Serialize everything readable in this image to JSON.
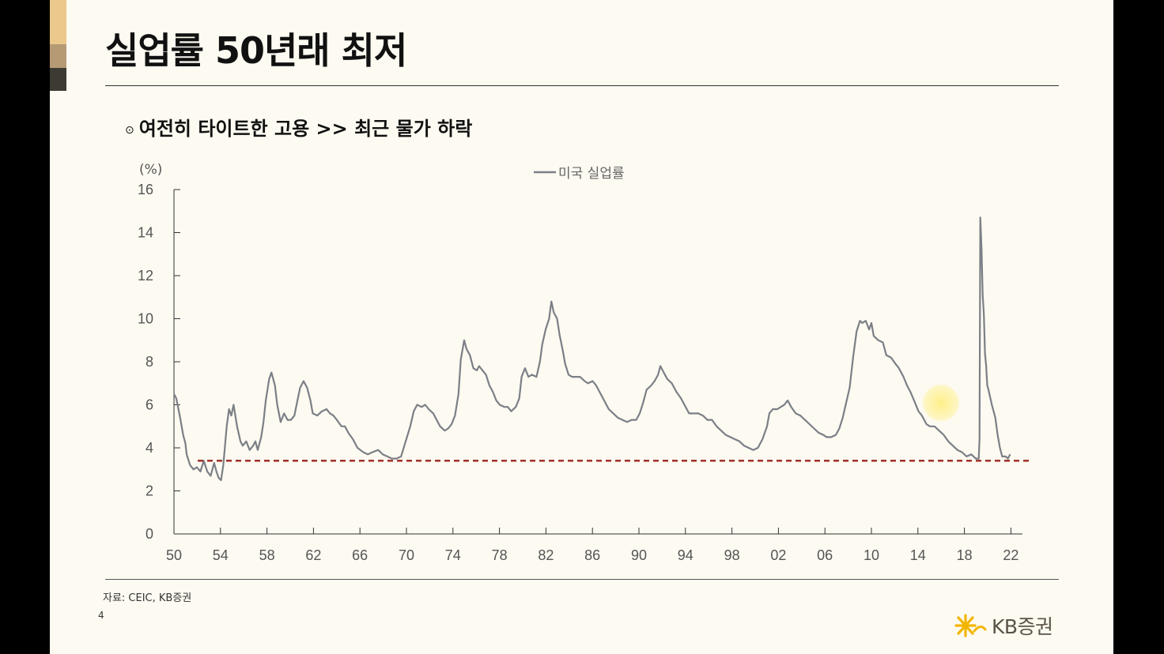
{
  "slide": {
    "title": "실업률 50년래 최저",
    "subtitle_bullet": "⊙",
    "subtitle": "여전히 타이트한 고용 >> 최근 물가 하락",
    "source": "자료: CEIC, KB증권",
    "page_number": "4",
    "brand": "KB증권",
    "accent_colors": [
      "#ebc88c",
      "#b59a74",
      "#3d3a33"
    ]
  },
  "chart_data": {
    "type": "line",
    "title": "",
    "xlabel": "",
    "ylabel": "(%)",
    "ylim": [
      0,
      16
    ],
    "yticks": [
      0,
      2,
      4,
      6,
      8,
      10,
      12,
      14,
      16
    ],
    "xlim": [
      1950,
      2023
    ],
    "xtick_labels": [
      "50",
      "54",
      "58",
      "62",
      "66",
      "70",
      "74",
      "78",
      "82",
      "86",
      "90",
      "94",
      "98",
      "02",
      "06",
      "10",
      "14",
      "18",
      "22"
    ],
    "grid": false,
    "legend_position": "top-center",
    "series": [
      {
        "name": "미국 실업률",
        "color": "#7b7f86",
        "points": [
          [
            1950.0,
            6.5
          ],
          [
            1950.2,
            6.3
          ],
          [
            1950.5,
            5.5
          ],
          [
            1950.8,
            4.6
          ],
          [
            1951.0,
            4.2
          ],
          [
            1951.1,
            3.7
          ],
          [
            1951.4,
            3.2
          ],
          [
            1951.7,
            3.0
          ],
          [
            1952.0,
            3.1
          ],
          [
            1952.3,
            2.9
          ],
          [
            1952.6,
            3.4
          ],
          [
            1952.9,
            2.9
          ],
          [
            1953.2,
            2.7
          ],
          [
            1953.5,
            3.3
          ],
          [
            1953.7,
            2.9
          ],
          [
            1953.9,
            2.6
          ],
          [
            1954.1,
            2.5
          ],
          [
            1954.3,
            3.2
          ],
          [
            1954.6,
            5.0
          ],
          [
            1954.8,
            5.8
          ],
          [
            1955.0,
            5.5
          ],
          [
            1955.2,
            6.0
          ],
          [
            1955.5,
            5.0
          ],
          [
            1955.8,
            4.3
          ],
          [
            1956.0,
            4.1
          ],
          [
            1956.3,
            4.3
          ],
          [
            1956.6,
            3.9
          ],
          [
            1956.9,
            4.1
          ],
          [
            1957.1,
            4.3
          ],
          [
            1957.3,
            3.9
          ],
          [
            1957.6,
            4.5
          ],
          [
            1957.8,
            5.2
          ],
          [
            1958.0,
            6.2
          ],
          [
            1958.3,
            7.2
          ],
          [
            1958.5,
            7.5
          ],
          [
            1958.8,
            6.9
          ],
          [
            1959.0,
            6.0
          ],
          [
            1959.3,
            5.2
          ],
          [
            1959.6,
            5.6
          ],
          [
            1959.9,
            5.3
          ],
          [
            1960.2,
            5.3
          ],
          [
            1960.5,
            5.5
          ],
          [
            1960.8,
            6.3
          ],
          [
            1961.0,
            6.8
          ],
          [
            1961.3,
            7.1
          ],
          [
            1961.6,
            6.8
          ],
          [
            1961.9,
            6.2
          ],
          [
            1962.1,
            5.6
          ],
          [
            1962.5,
            5.5
          ],
          [
            1962.9,
            5.7
          ],
          [
            1963.3,
            5.8
          ],
          [
            1963.6,
            5.6
          ],
          [
            1963.9,
            5.5
          ],
          [
            1964.2,
            5.3
          ],
          [
            1964.6,
            5.0
          ],
          [
            1964.9,
            5.0
          ],
          [
            1965.2,
            4.7
          ],
          [
            1965.6,
            4.4
          ],
          [
            1966.0,
            4.0
          ],
          [
            1966.5,
            3.8
          ],
          [
            1966.9,
            3.7
          ],
          [
            1967.3,
            3.8
          ],
          [
            1967.8,
            3.9
          ],
          [
            1968.2,
            3.7
          ],
          [
            1968.6,
            3.6
          ],
          [
            1969.0,
            3.5
          ],
          [
            1969.4,
            3.5
          ],
          [
            1969.8,
            3.6
          ],
          [
            1970.2,
            4.3
          ],
          [
            1970.6,
            5.0
          ],
          [
            1970.9,
            5.7
          ],
          [
            1971.2,
            6.0
          ],
          [
            1971.6,
            5.9
          ],
          [
            1971.9,
            6.0
          ],
          [
            1972.2,
            5.8
          ],
          [
            1972.6,
            5.6
          ],
          [
            1972.9,
            5.3
          ],
          [
            1973.2,
            5.0
          ],
          [
            1973.6,
            4.8
          ],
          [
            1973.9,
            4.9
          ],
          [
            1974.2,
            5.1
          ],
          [
            1974.5,
            5.5
          ],
          [
            1974.8,
            6.5
          ],
          [
            1975.0,
            8.1
          ],
          [
            1975.3,
            9.0
          ],
          [
            1975.5,
            8.6
          ],
          [
            1975.8,
            8.3
          ],
          [
            1976.1,
            7.7
          ],
          [
            1976.4,
            7.6
          ],
          [
            1976.6,
            7.8
          ],
          [
            1976.9,
            7.6
          ],
          [
            1977.2,
            7.4
          ],
          [
            1977.5,
            6.9
          ],
          [
            1977.8,
            6.6
          ],
          [
            1978.1,
            6.2
          ],
          [
            1978.4,
            6.0
          ],
          [
            1978.8,
            5.9
          ],
          [
            1979.1,
            5.9
          ],
          [
            1979.4,
            5.7
          ],
          [
            1979.8,
            5.9
          ],
          [
            1980.1,
            6.3
          ],
          [
            1980.3,
            7.3
          ],
          [
            1980.6,
            7.7
          ],
          [
            1980.9,
            7.3
          ],
          [
            1981.2,
            7.4
          ],
          [
            1981.6,
            7.3
          ],
          [
            1981.9,
            8.0
          ],
          [
            1982.1,
            8.8
          ],
          [
            1982.4,
            9.5
          ],
          [
            1982.7,
            10.0
          ],
          [
            1982.9,
            10.8
          ],
          [
            1983.1,
            10.3
          ],
          [
            1983.4,
            10.0
          ],
          [
            1983.6,
            9.3
          ],
          [
            1983.9,
            8.5
          ],
          [
            1984.1,
            7.9
          ],
          [
            1984.4,
            7.4
          ],
          [
            1984.7,
            7.3
          ],
          [
            1985.0,
            7.3
          ],
          [
            1985.4,
            7.3
          ],
          [
            1985.8,
            7.1
          ],
          [
            1986.1,
            7.0
          ],
          [
            1986.5,
            7.1
          ],
          [
            1986.8,
            6.9
          ],
          [
            1987.1,
            6.6
          ],
          [
            1987.5,
            6.2
          ],
          [
            1987.9,
            5.8
          ],
          [
            1988.3,
            5.6
          ],
          [
            1988.7,
            5.4
          ],
          [
            1989.1,
            5.3
          ],
          [
            1989.5,
            5.2
          ],
          [
            1989.9,
            5.3
          ],
          [
            1990.3,
            5.3
          ],
          [
            1990.6,
            5.6
          ],
          [
            1990.9,
            6.1
          ],
          [
            1991.2,
            6.7
          ],
          [
            1991.6,
            6.9
          ],
          [
            1991.9,
            7.1
          ],
          [
            1992.2,
            7.4
          ],
          [
            1992.4,
            7.8
          ],
          [
            1992.7,
            7.5
          ],
          [
            1993.0,
            7.2
          ],
          [
            1993.4,
            7.0
          ],
          [
            1993.8,
            6.6
          ],
          [
            1994.2,
            6.3
          ],
          [
            1994.6,
            5.9
          ],
          [
            1994.9,
            5.6
          ],
          [
            1995.3,
            5.6
          ],
          [
            1995.7,
            5.6
          ],
          [
            1996.1,
            5.5
          ],
          [
            1996.5,
            5.3
          ],
          [
            1996.9,
            5.3
          ],
          [
            1997.3,
            5.0
          ],
          [
            1997.7,
            4.8
          ],
          [
            1998.1,
            4.6
          ],
          [
            1998.5,
            4.5
          ],
          [
            1998.9,
            4.4
          ],
          [
            1999.3,
            4.3
          ],
          [
            1999.7,
            4.1
          ],
          [
            2000.1,
            4.0
          ],
          [
            2000.5,
            3.9
          ],
          [
            2000.9,
            4.0
          ],
          [
            2001.3,
            4.4
          ],
          [
            2001.7,
            5.0
          ],
          [
            2001.9,
            5.6
          ],
          [
            2002.2,
            5.8
          ],
          [
            2002.6,
            5.8
          ],
          [
            2002.9,
            5.9
          ],
          [
            2003.2,
            6.0
          ],
          [
            2003.5,
            6.2
          ],
          [
            2003.8,
            5.9
          ],
          [
            2004.2,
            5.6
          ],
          [
            2004.6,
            5.5
          ],
          [
            2005.0,
            5.3
          ],
          [
            2005.4,
            5.1
          ],
          [
            2005.8,
            4.9
          ],
          [
            2006.2,
            4.7
          ],
          [
            2006.6,
            4.6
          ],
          [
            2006.9,
            4.5
          ],
          [
            2007.3,
            4.5
          ],
          [
            2007.7,
            4.6
          ],
          [
            2008.0,
            4.9
          ],
          [
            2008.3,
            5.4
          ],
          [
            2008.6,
            6.1
          ],
          [
            2008.9,
            6.8
          ],
          [
            2009.2,
            8.2
          ],
          [
            2009.5,
            9.4
          ],
          [
            2009.8,
            9.9
          ],
          [
            2010.0,
            9.8
          ],
          [
            2010.3,
            9.9
          ],
          [
            2010.6,
            9.5
          ],
          [
            2010.8,
            9.8
          ],
          [
            2011.0,
            9.2
          ],
          [
            2011.4,
            9.0
          ],
          [
            2011.8,
            8.9
          ],
          [
            2012.1,
            8.3
          ],
          [
            2012.5,
            8.2
          ],
          [
            2012.9,
            7.9
          ],
          [
            2013.2,
            7.7
          ],
          [
            2013.6,
            7.3
          ],
          [
            2013.9,
            6.9
          ],
          [
            2014.2,
            6.6
          ],
          [
            2014.6,
            6.1
          ],
          [
            2014.9,
            5.7
          ],
          [
            2015.2,
            5.5
          ],
          [
            2015.6,
            5.1
          ],
          [
            2015.9,
            5.0
          ],
          [
            2016.3,
            5.0
          ],
          [
            2016.7,
            4.8
          ],
          [
            2017.1,
            4.6
          ],
          [
            2017.5,
            4.3
          ],
          [
            2017.9,
            4.1
          ],
          [
            2018.3,
            3.9
          ],
          [
            2018.7,
            3.8
          ],
          [
            2019.1,
            3.6
          ],
          [
            2019.5,
            3.7
          ],
          [
            2019.9,
            3.5
          ],
          [
            2020.15,
            3.5
          ],
          [
            2020.22,
            4.4
          ],
          [
            2020.29,
            14.7
          ],
          [
            2020.4,
            13.2
          ],
          [
            2020.5,
            11.1
          ],
          [
            2020.6,
            10.2
          ],
          [
            2020.7,
            8.4
          ],
          [
            2020.8,
            7.8
          ],
          [
            2020.9,
            6.9
          ],
          [
            2021.0,
            6.7
          ],
          [
            2021.3,
            6.0
          ],
          [
            2021.6,
            5.4
          ],
          [
            2021.8,
            4.6
          ],
          [
            2022.0,
            4.0
          ],
          [
            2022.2,
            3.6
          ],
          [
            2022.5,
            3.6
          ],
          [
            2022.7,
            3.5
          ],
          [
            2022.9,
            3.7
          ]
        ]
      }
    ],
    "reference_line": {
      "value": 3.4,
      "style": "dashed",
      "color": "#9b2621"
    }
  }
}
